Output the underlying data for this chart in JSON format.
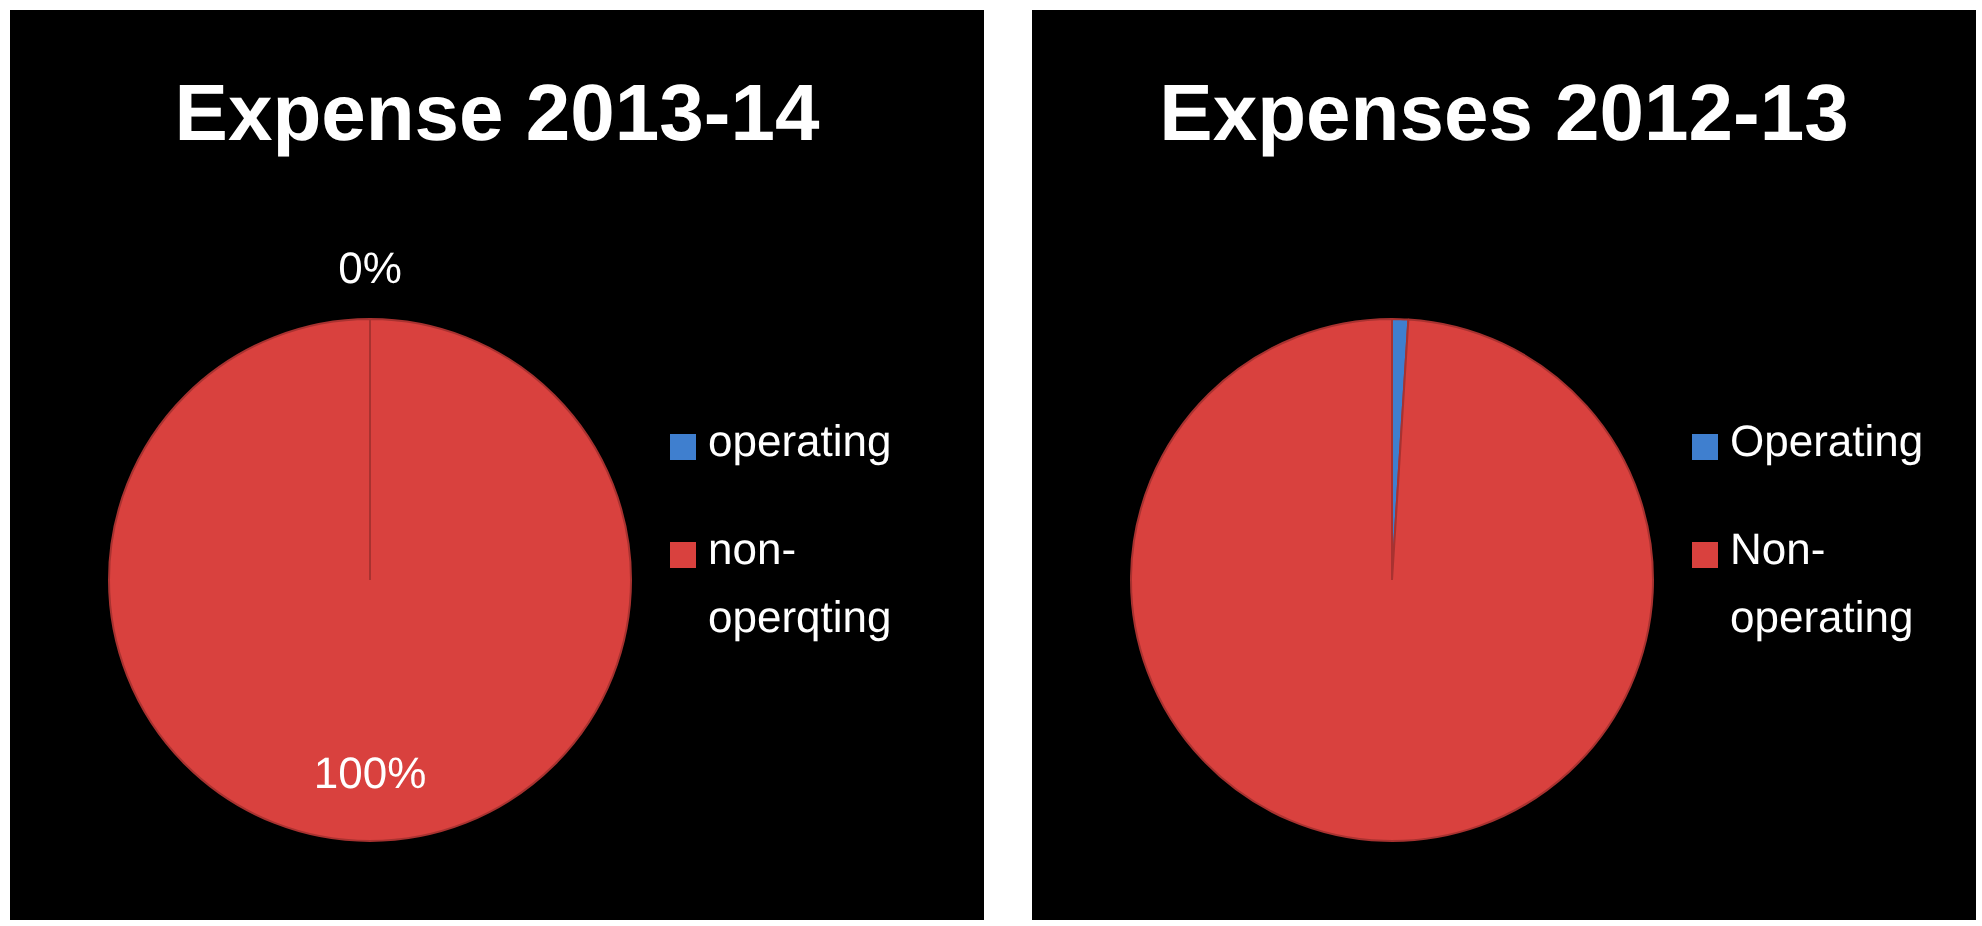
{
  "chart_data": [
    {
      "type": "pie",
      "title": "Expense 2013-14",
      "categories": [
        "operating",
        "non-operqting"
      ],
      "values": [
        0,
        100
      ],
      "value_labels": [
        "0%",
        "100%"
      ],
      "colors": [
        "#3f7fcf",
        "#d9413e"
      ],
      "legend": "right"
    },
    {
      "type": "pie",
      "title": "Expenses 2012-13",
      "categories": [
        "Operating",
        "Non-operating"
      ],
      "values": [
        1,
        99
      ],
      "colors": [
        "#3f7fcf",
        "#d9413e"
      ],
      "legend": "right"
    }
  ]
}
